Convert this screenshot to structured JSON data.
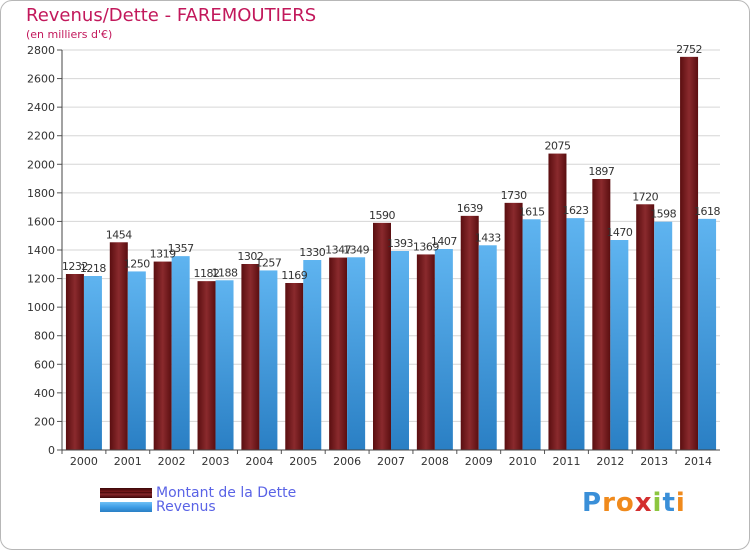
{
  "title": "Revenus/Dette - FAREMOUTIERS",
  "subtitle": "(en milliers d'€)",
  "brand": {
    "letters": [
      "P",
      "r",
      "o",
      "x",
      "i",
      "t",
      "i"
    ],
    "colors": [
      "#3a8fd8",
      "#f08a1c",
      "#f08a1c",
      "#d32f2f",
      "#8cc63f",
      "#3a8fd8",
      "#f08a1c"
    ]
  },
  "legend": {
    "items": [
      {
        "label": "Montant de la Dette",
        "color": "#6b1518"
      },
      {
        "label": "Revenus",
        "color": "#3f9ee6"
      }
    ]
  },
  "chart_data": {
    "type": "bar",
    "categories": [
      "2000",
      "2001",
      "2002",
      "2003",
      "2004",
      "2005",
      "2006",
      "2007",
      "2008",
      "2009",
      "2010",
      "2011",
      "2012",
      "2013",
      "2014"
    ],
    "series": [
      {
        "name": "Montant de la Dette",
        "color": "#7a1a1d",
        "values": [
          1232,
          1454,
          1319,
          1182,
          1302,
          1169,
          1347,
          1590,
          1369,
          1639,
          1730,
          2075,
          1897,
          1720,
          2752
        ]
      },
      {
        "name": "Revenus",
        "color": "#3f9ee6",
        "values": [
          1218,
          1250,
          1357,
          1188,
          1257,
          1330,
          1349,
          1393,
          1407,
          1433,
          1615,
          1623,
          1470,
          1598,
          1618
        ]
      }
    ],
    "yticks": [
      0,
      200,
      400,
      600,
      800,
      1000,
      1200,
      1400,
      1600,
      1800,
      2000,
      2200,
      2400,
      2600,
      2800
    ],
    "ylim": [
      0,
      2800
    ],
    "grid": true,
    "legend_position": "bottom-left"
  }
}
